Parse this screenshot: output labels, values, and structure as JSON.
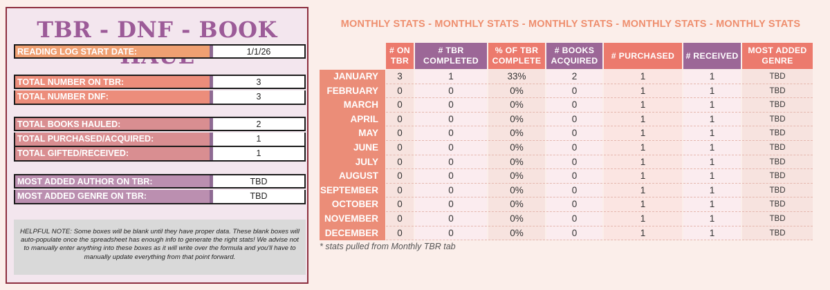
{
  "left": {
    "title": "TBR  - DNF - BOOK HAUL",
    "start_label": "READING LOG START DATE:",
    "start_value": "1/1/26",
    "tbr_label": "TOTAL NUMBER ON TBR:",
    "tbr_value": "3",
    "dnf_label": "TOTAL NUMBER DNF:",
    "dnf_value": "3",
    "hauled_label": "TOTAL BOOKS HAULED:",
    "hauled_value": "2",
    "purchased_label": "TOTAL PURCHASED/ACQUIRED:",
    "purchased_value": "1",
    "gifted_label": "TOTAL GIFTED/RECEIVED:",
    "gifted_value": "1",
    "author_label": "MOST ADDED AUTHOR ON TBR:",
    "author_value": "TBD",
    "genre_label": "MOST ADDED GENRE ON TBR:",
    "genre_value": "TBD",
    "note": "HELPFUL NOTE: Some boxes will be blank until they have proper data. These blank boxes will auto-populate once the spreadsheet has enough info to generate the right stats! We advise not to manually enter anything into these boxes as it will write over the formula and you'll have to manually update everything from that point forward."
  },
  "right": {
    "banner": "MONTHLY STATS - MONTHLY STATS - MONTHLY STATS - MONTHLY STATS - MONTHLY STATS",
    "headers": [
      "# ON TBR",
      "# TBR COMPLETED",
      "% OF TBR COMPLETE",
      "# BOOKS ACQUIRED",
      "# PURCHASED",
      "# RECEIVED",
      "MOST ADDED GENRE"
    ],
    "header_colors": [
      "#ec7a6d",
      "#9c6797",
      "#ec7a6d",
      "#9c6797",
      "#ec7a6d",
      "#9c6797",
      "#ec7a6d"
    ],
    "months": [
      "JANUARY",
      "FEBRUARY",
      "MARCH",
      "APRIL",
      "MAY",
      "JUNE",
      "JULY",
      "AUGUST",
      "SEPTEMBER",
      "OCTOBER",
      "NOVEMBER",
      "DECEMBER"
    ],
    "columns": [
      [
        "3",
        "0",
        "0",
        "0",
        "0",
        "0",
        "0",
        "0",
        "0",
        "0",
        "0",
        "0"
      ],
      [
        "1",
        "0",
        "0",
        "0",
        "0",
        "0",
        "0",
        "0",
        "0",
        "0",
        "0",
        "0"
      ],
      [
        "33%",
        "0%",
        "0%",
        "0%",
        "0%",
        "0%",
        "0%",
        "0%",
        "0%",
        "0%",
        "0%",
        "0%"
      ],
      [
        "2",
        "0",
        "0",
        "0",
        "0",
        "0",
        "0",
        "0",
        "0",
        "0",
        "0",
        "0"
      ],
      [
        "1",
        "1",
        "1",
        "1",
        "1",
        "1",
        "1",
        "1",
        "1",
        "1",
        "1",
        "1"
      ],
      [
        "1",
        "1",
        "1",
        "1",
        "1",
        "1",
        "1",
        "1",
        "1",
        "1",
        "1",
        "1"
      ],
      [
        "TBD",
        "TBD",
        "TBD",
        "TBD",
        "TBD",
        "TBD",
        "TBD",
        "TBD",
        "TBD",
        "TBD",
        "TBD",
        "TBD"
      ]
    ],
    "column_bg": [
      "#f7e3df",
      "#fbecef",
      "#f7e3df",
      "#fbecef",
      "#fbe5e2",
      "#fbecef",
      "#f7e3df"
    ],
    "footnote": "* stats pulled from Monthly TBR tab"
  }
}
